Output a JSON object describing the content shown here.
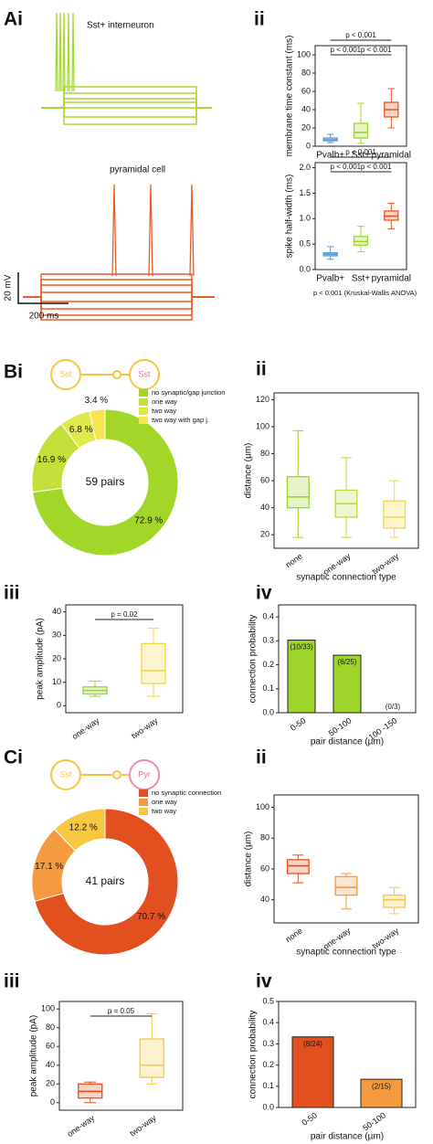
{
  "chart_data": [
    {
      "type": "traces",
      "panel_label": "Ai",
      "cell_labels": [
        "Sst+ interneuron",
        "pyramidal cell"
      ],
      "colors": [
        "#a6d832",
        "#ea5a24"
      ],
      "scale_labels": [
        "20 mV",
        "200 ms"
      ]
    },
    {
      "type": "box",
      "panel_label": "ii",
      "ylabel": "membrane time constant (ms)",
      "categories": [
        "Pvalb+",
        "Sst+",
        "pyramidal"
      ],
      "colors": [
        "#5b9bd5",
        "#9fd42a",
        "#e8541f"
      ],
      "boxes": [
        {
          "whisker_low": 4,
          "q1": 6,
          "median": 7,
          "q3": 9,
          "whisker_high": 13
        },
        {
          "whisker_low": 3,
          "q1": 9,
          "median": 15,
          "q3": 25,
          "whisker_high": 47
        },
        {
          "whisker_low": 20,
          "q1": 32,
          "median": 40,
          "q3": 48,
          "whisker_high": 63
        }
      ],
      "ylim": [
        0,
        110
      ],
      "yticks": [
        0,
        20,
        40,
        60,
        80,
        100
      ],
      "annotations": [
        "p < 0.001",
        "p < 0.001",
        "p < 0.001"
      ]
    },
    {
      "type": "box",
      "ylabel": "spike half-width (ms)",
      "categories": [
        "Pvalb+",
        "Sst+",
        "pyramidal"
      ],
      "colors": [
        "#5b9bd5",
        "#9fd42a",
        "#e8541f"
      ],
      "boxes": [
        {
          "whisker_low": 0.2,
          "q1": 0.27,
          "median": 0.3,
          "q3": 0.33,
          "whisker_high": 0.45
        },
        {
          "whisker_low": 0.35,
          "q1": 0.48,
          "median": 0.55,
          "q3": 0.65,
          "whisker_high": 0.85
        },
        {
          "whisker_low": 0.8,
          "q1": 0.97,
          "median": 1.05,
          "q3": 1.15,
          "whisker_high": 1.3
        }
      ],
      "ylim": [
        0,
        2.1
      ],
      "yticks": [
        {
          "value": 0,
          "label": "0.0"
        },
        0.5,
        {
          "value": 1,
          "label": "1.0"
        },
        1.5,
        {
          "value": 2,
          "label": "2.0"
        }
      ],
      "annotations": [
        "p < 0.001",
        "p < 0.001",
        "p < 0.001"
      ],
      "note": "p < 0.001 (Kruskal-Wallis ANOVA)"
    },
    {
      "type": "donut",
      "panel_label": "Bi",
      "diagram_labels": [
        "Sst",
        "Sst"
      ],
      "diagram_color": "#f4c542",
      "center_label": "59 pairs",
      "categories": [
        "no synaptic/gap junction",
        "one way",
        "two way",
        "two way with gap j."
      ],
      "values": [
        72.9,
        16.9,
        6.8,
        3.4
      ],
      "value_labels": [
        "72.9 %",
        "16.9 %",
        "6.8 %",
        "3.4 %"
      ],
      "colors": [
        "#a2d629",
        "#c3e03a",
        "#dfe94a",
        "#f4e64c"
      ]
    },
    {
      "type": "box",
      "panel_label": "ii",
      "ylabel": "distance (µm)",
      "xlabel": "synaptic connection type",
      "categories": [
        "none",
        "one-way",
        "two-way"
      ],
      "colors": [
        "#9fd42a",
        "#b6dc3a",
        "#f2d83c"
      ],
      "boxes": [
        {
          "whisker_low": 18,
          "q1": 40,
          "median": 48,
          "q3": 63,
          "whisker_high": 97
        },
        {
          "whisker_low": 18,
          "q1": 33,
          "median": 43,
          "q3": 53,
          "whisker_high": 77
        },
        {
          "whisker_low": 18,
          "q1": 25,
          "median": 33,
          "q3": 45,
          "whisker_high": 60
        }
      ],
      "ylim": [
        10,
        125
      ],
      "yticks": [
        20,
        40,
        60,
        80,
        100,
        120
      ]
    },
    {
      "type": "box",
      "panel_label": "iii",
      "ylabel": "peak amplitude (pA)",
      "categories": [
        "one-way",
        "two-way"
      ],
      "colors": [
        "#9fd42a",
        "#f2d83c"
      ],
      "boxes": [
        {
          "whisker_low": 4,
          "q1": 5,
          "median": 6.5,
          "q3": 8,
          "whisker_high": 10.5
        },
        {
          "whisker_low": 4,
          "q1": 9.5,
          "median": 15,
          "q3": 26.5,
          "whisker_high": 33
        }
      ],
      "ylim": [
        -3,
        43
      ],
      "yticks": [
        0,
        10,
        20,
        30,
        40
      ],
      "annotations": [
        "p = 0.02"
      ]
    },
    {
      "type": "bar",
      "panel_label": "iv",
      "ylabel": "connection probability",
      "xlabel": "pair distance (µm)",
      "categories": [
        "0-50",
        "50-100",
        "100 -150"
      ],
      "values": [
        0.303,
        0.24,
        0
      ],
      "value_labels": [
        "(10/33)",
        "(6/25)",
        "(0/3)"
      ],
      "colors": [
        "#9fd42a",
        "#9fd42a",
        "#f2d83c"
      ],
      "ylim": [
        0,
        0.45
      ],
      "yticks": [
        {
          "value": 0,
          "label": "0.0"
        },
        0.1,
        0.2,
        0.3,
        0.4
      ]
    },
    {
      "type": "donut",
      "panel_label": "Ci",
      "diagram_labels": [
        "Sst",
        "Pyr"
      ],
      "diagram_color": "#f4c542",
      "center_label": "41 pairs",
      "categories": [
        "no synaptic connection",
        "one way",
        "two way"
      ],
      "values": [
        70.7,
        17.1,
        12.2
      ],
      "value_labels": [
        "70.7 %",
        "17.1 %",
        "12.2 %"
      ],
      "colors": [
        "#e2501f",
        "#f59a3e",
        "#f7c940"
      ]
    },
    {
      "type": "box",
      "panel_label": "ii",
      "ylabel": "distance (µm)",
      "xlabel": "synaptic connection type",
      "categories": [
        "none",
        "one-way",
        "two-way"
      ],
      "colors": [
        "#e2501f",
        "#f59a3e",
        "#f7c940"
      ],
      "boxes": [
        {
          "whisker_low": 51,
          "q1": 57,
          "median": 62,
          "q3": 66,
          "whisker_high": 69
        },
        {
          "whisker_low": 34,
          "q1": 43,
          "median": 48,
          "q3": 55,
          "whisker_high": 57
        },
        {
          "whisker_low": 31,
          "q1": 35,
          "median": 40,
          "q3": 43,
          "whisker_high": 48
        }
      ],
      "ylim": [
        25,
        108
      ],
      "yticks": [
        40,
        60,
        80,
        100
      ]
    },
    {
      "type": "box",
      "panel_label": "iii",
      "ylabel": "peak amplitude (pA)",
      "categories": [
        "one-way",
        "two-way"
      ],
      "colors": [
        "#e2501f",
        "#f7c940"
      ],
      "boxes": [
        {
          "whisker_low": 0,
          "q1": 5,
          "median": 12,
          "q3": 20,
          "whisker_high": 22
        },
        {
          "whisker_low": 20,
          "q1": 27,
          "median": 40,
          "q3": 68,
          "whisker_high": 95
        }
      ],
      "ylim": [
        -8,
        108
      ],
      "yticks": [
        0,
        20,
        40,
        60,
        80,
        100
      ],
      "annotations": [
        "p = 0.05"
      ]
    },
    {
      "type": "bar",
      "panel_label": "iv",
      "ylabel": "connection probability",
      "xlabel": "pair distance (µm)",
      "categories": [
        "0-50",
        "50-100"
      ],
      "values": [
        0.333,
        0.133
      ],
      "value_labels": [
        "(8/24)",
        "(2/15)"
      ],
      "colors": [
        "#e2501f",
        "#f59a3e"
      ],
      "ylim": [
        0,
        0.5
      ],
      "yticks": [
        {
          "value": 0,
          "label": "0.0"
        },
        0.1,
        0.2,
        0.3,
        0.4,
        0.5
      ]
    }
  ]
}
